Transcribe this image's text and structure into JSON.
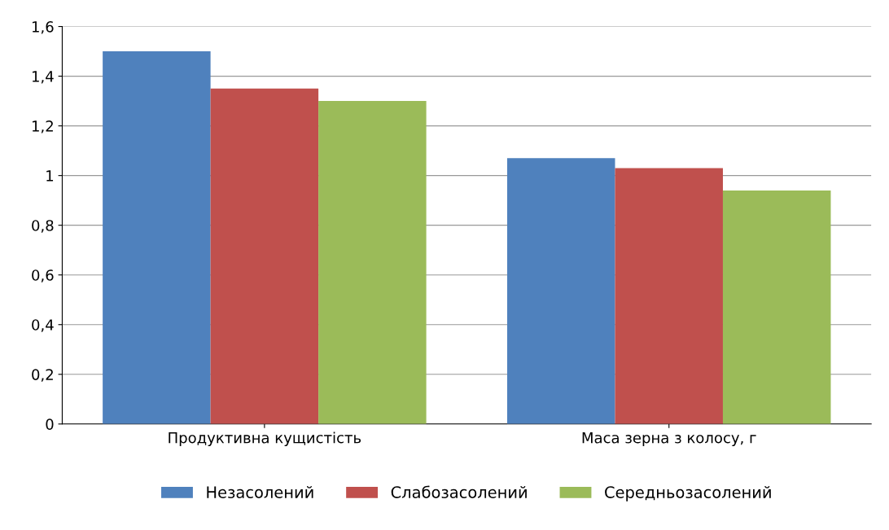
{
  "chart_data": {
    "type": "bar",
    "categories": [
      "Продуктивна кущистість",
      "Маса зерна з колосу, г"
    ],
    "series": [
      {
        "name": "Незасолений",
        "color": "#4f81bd",
        "values": [
          1.5,
          1.07
        ]
      },
      {
        "name": "Слабозасолений",
        "color": "#c0504d",
        "values": [
          1.35,
          1.03
        ]
      },
      {
        "name": "Середньозасолений",
        "color": "#9bbb59",
        "values": [
          1.3,
          0.94
        ]
      }
    ],
    "ylim": [
      0,
      1.6
    ],
    "yticks": [
      0,
      {
        "value": 0.2,
        "label": "0,2"
      },
      {
        "value": 0.4,
        "label": "0,4"
      },
      {
        "value": 0.6,
        "label": "0,6"
      },
      {
        "value": 0.8,
        "label": "0,8"
      },
      1,
      {
        "value": 1.2,
        "label": "1,2"
      },
      {
        "value": 1.4,
        "label": "1,4"
      },
      {
        "value": 1.6,
        "label": "1,6"
      }
    ],
    "grid": "y",
    "legend": "bottom"
  }
}
